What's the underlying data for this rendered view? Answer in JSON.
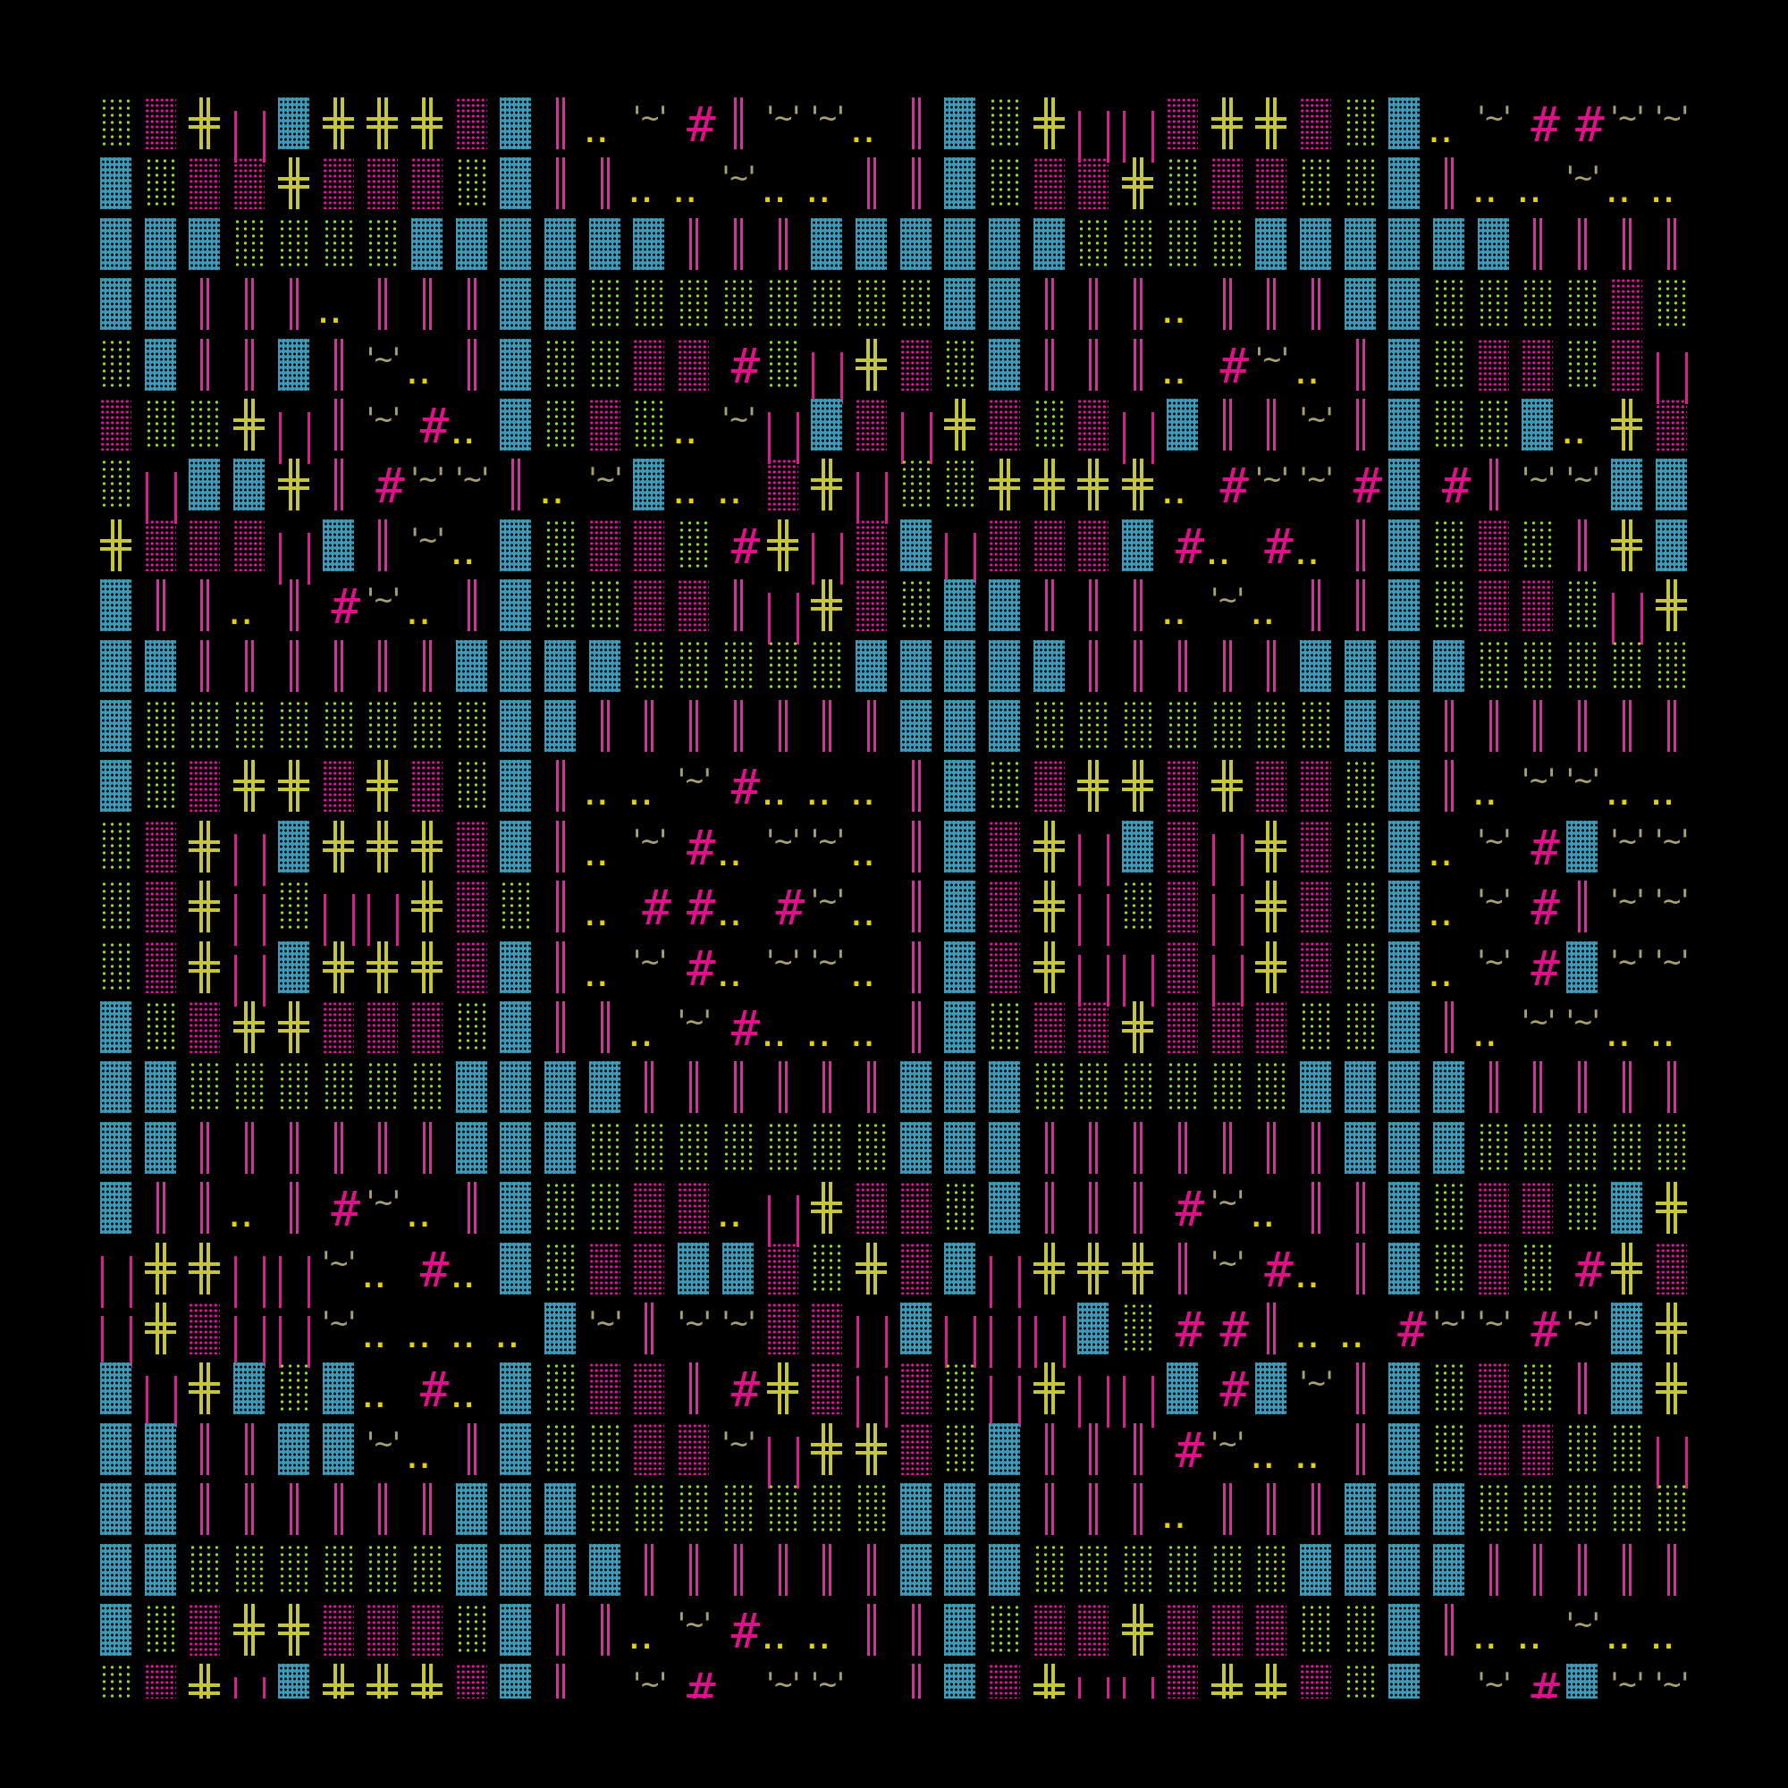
{
  "glyphs": {
    "B": "▓",
    "P": "▒",
    "G": "░",
    "X": "╬",
    "H": "‖",
    "L": "| |",
    "T": "'~'",
    "D": "..",
    "#": "#"
  },
  "colors": {
    "blue_block": "#3e9ab8",
    "pink_block": "#e0149a",
    "green_block": "#8fdc2a",
    "cross": "#c6c63c",
    "bars": "#cc3899",
    "hash": "#e0108a",
    "tilde": "#a8a070",
    "dots": "#e6d200",
    "background": "#000000"
  },
  "grid": {
    "rows": [
      "GPXLBXXXPBHDT#HTTDHBGXLLPXXPGBDT##TT",
      "BGPPXPPPGBHHDDTDDHHBGPPXGPPGGBHDDTDD",
      "BBBGGGGBBBBBBHHHBBBBBBGGGGBBBBBBHHHH",
      "BBHHHDHHHBBGGGGGGGGBBHHHDHHHBBGGGGPG",
      "GBHHBHTDHBGGPP#GLXPGBHHHD#TDHBGPPGPL",
      "PGGXLHT#DBGPGDTLBPLXPGPLBHHTHBGGBDXP",
      "GLBBXH#TTHDTBDDPXLGGXXXXD#TT#B#HTTBB",
      "XPPPLBHTDBGPPG#XLPBLPPPB#D#DHBGPGHXB",
      "BHHDH#TDHBGGPPHLXPGBBHHHDTDHHBGPPGLX",
      "BBHHHHHHBBBBGGGGGBBBBBHHHHHBBBBGGGGG",
      "BGGGGGGGGBBHHHHHHHBBBGGGGGGGBBHHHHHH",
      "BGPXXPXPGBHDDT#DDDHBGPXXPXPPGBHDTTDD",
      "GPXLBXXXPBHDT#DTTDHBPXLBPLXPGBDT#BTT",
      "GPXLGLLXPGHD##D#TDHBPXLGPLXPGBDT#HTT",
      "GPXLBXXXPBHDT#DTTDHBPXLLPLXPGBDT#BTT",
      "BGPXXPPPGBHHDT#DDDHBGPPXPPPGGBHDTTDD",
      "BBGGGGGGBBBBHHHHHHBBBGGGGGGBBBBHHHHH",
      "BBHHHHHHBBBGGGGGGGBBBHHHHHHHBBBGGGGG",
      "BHHDH#TDHBGGPPDLXPPGBHHH#TDHHBGPPGBX",
      "LXXLLTD#DBGPPBBPGXPBLXXXHT#DHBGPG#XP",
      "LXPLLTDDDDBTHTTPPLBLLLBG##HDD#TT#TBX",
      "BLXBGBD#DBGPPH#XPLPGLXLLB#BTHBGPGHBX",
      "BBHHBBTDHBGGPPTLXXPGBHHH#TDDHBGPPGGL",
      "BBHHHHHHBBBGGGGGGGBBBHHHDHHHBBBGGGGG",
      "BBGGGGGGBBBBHHHHHHBBBGGGGGGBBBBHHHHH",
      "BGPXXPPPGBHHDT#DDHHBGPPXPPPGGBHDDTDD",
      "GPXLBXXXPBHDT#DTTDHBPXLLPXXPGBDT#BTT"
    ]
  }
}
